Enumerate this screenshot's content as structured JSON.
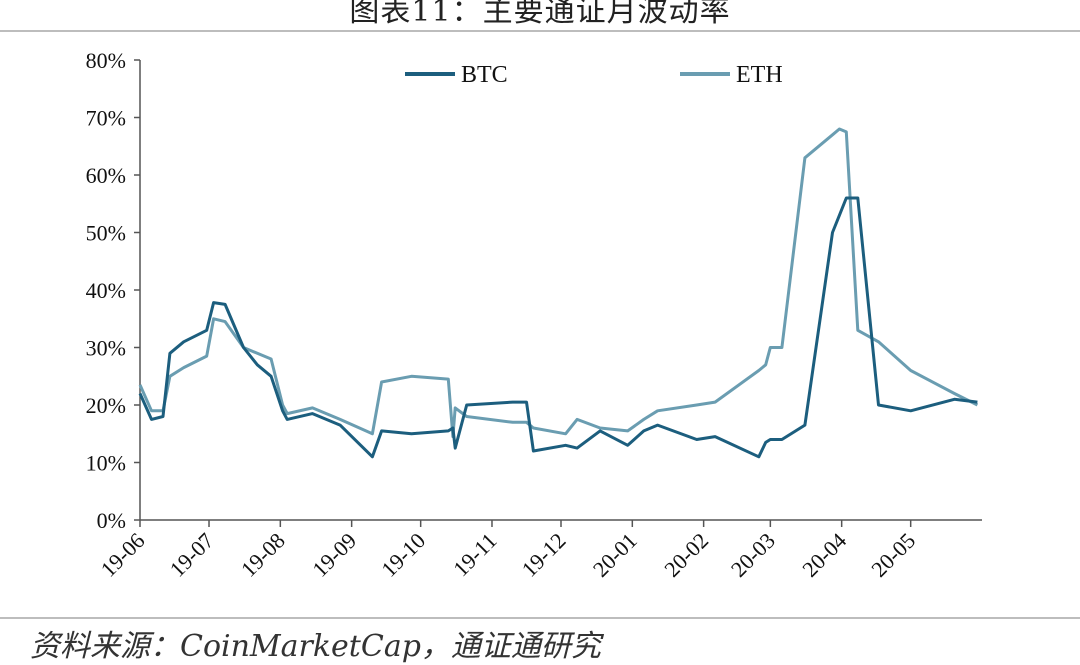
{
  "header": {
    "title": "图表11：主要通证月波动率"
  },
  "footer": {
    "source": "资料来源：CoinMarketCap，通证通研究"
  },
  "colors": {
    "BTC": "#1c5e7e",
    "ETH": "#6a9db1",
    "axis": "#555555",
    "rule": "#bdbdbd"
  },
  "chart_data": {
    "type": "line",
    "title": "图表11：主要通证月波动率",
    "ylim": [
      0,
      80
    ],
    "yticks": [
      "0%",
      "10%",
      "20%",
      "30%",
      "40%",
      "50%",
      "60%",
      "70%",
      "80%"
    ],
    "xticks": [
      "19-06",
      "19-07",
      "19-08",
      "19-09",
      "19-10",
      "19-11",
      "19-12",
      "20-01",
      "20-02",
      "20-03",
      "20-04",
      "20-05"
    ],
    "grid": false,
    "legend": {
      "position": "top",
      "entries": [
        "BTC",
        "ETH"
      ]
    },
    "series": [
      {
        "name": "BTC",
        "x": [
          "2019-06-01",
          "2019-06-06",
          "2019-06-11",
          "2019-06-14",
          "2019-06-20",
          "2019-06-30",
          "2019-07-03",
          "2019-07-08",
          "2019-07-16",
          "2019-07-22",
          "2019-07-28",
          "2019-08-02",
          "2019-08-04",
          "2019-08-15",
          "2019-08-27",
          "2019-09-10",
          "2019-09-14",
          "2019-09-27",
          "2019-10-13",
          "2019-10-15",
          "2019-10-16",
          "2019-10-21",
          "2019-11-10",
          "2019-11-16",
          "2019-11-19",
          "2019-12-03",
          "2019-12-08",
          "2019-12-18",
          "2019-12-30",
          "2020-01-06",
          "2020-01-12",
          "2020-01-29",
          "2020-02-06",
          "2020-02-25",
          "2020-02-28",
          "2020-03-01",
          "2020-03-06",
          "2020-03-16",
          "2020-03-28",
          "2020-03-31",
          "2020-04-03",
          "2020-04-08",
          "2020-04-17",
          "2020-05-01",
          "2020-05-20",
          "2020-05-30"
        ],
        "values": [
          22,
          17.5,
          18,
          29,
          31,
          33,
          37.8,
          37.5,
          30,
          27,
          25,
          19,
          17.5,
          18.5,
          16.5,
          11,
          15.5,
          15,
          15.5,
          16,
          12.5,
          20,
          20.5,
          20.5,
          12,
          13,
          12.5,
          15.5,
          13,
          15.5,
          16.5,
          14,
          14.5,
          11,
          13.5,
          14,
          14,
          16.5,
          50,
          53,
          56,
          56,
          20,
          19,
          21,
          20.5
        ]
      },
      {
        "name": "ETH",
        "x": [
          "2019-06-01",
          "2019-06-06",
          "2019-06-11",
          "2019-06-14",
          "2019-06-20",
          "2019-06-30",
          "2019-07-03",
          "2019-07-08",
          "2019-07-16",
          "2019-07-22",
          "2019-07-28",
          "2019-08-02",
          "2019-08-04",
          "2019-08-15",
          "2019-08-27",
          "2019-09-10",
          "2019-09-14",
          "2019-09-27",
          "2019-10-13",
          "2019-10-15",
          "2019-10-16",
          "2019-10-21",
          "2019-11-10",
          "2019-11-16",
          "2019-11-19",
          "2019-12-03",
          "2019-12-08",
          "2019-12-18",
          "2019-12-30",
          "2020-01-06",
          "2020-01-12",
          "2020-01-29",
          "2020-02-06",
          "2020-02-25",
          "2020-02-28",
          "2020-03-01",
          "2020-03-06",
          "2020-03-16",
          "2020-03-28",
          "2020-03-31",
          "2020-04-03",
          "2020-04-08",
          "2020-04-17",
          "2020-05-01",
          "2020-05-20",
          "2020-05-30"
        ],
        "values": [
          23.5,
          19,
          19,
          25,
          26.5,
          28.5,
          35,
          34.5,
          30,
          29,
          28,
          20,
          18.5,
          19.5,
          17.5,
          15,
          24,
          25,
          24.5,
          14.5,
          19.5,
          18,
          17,
          17,
          16,
          15,
          17.5,
          16,
          15.5,
          17.5,
          19,
          20,
          20.5,
          26,
          27,
          30,
          30,
          63,
          67,
          68,
          67.5,
          33,
          31,
          26,
          22,
          20
        ]
      }
    ]
  }
}
